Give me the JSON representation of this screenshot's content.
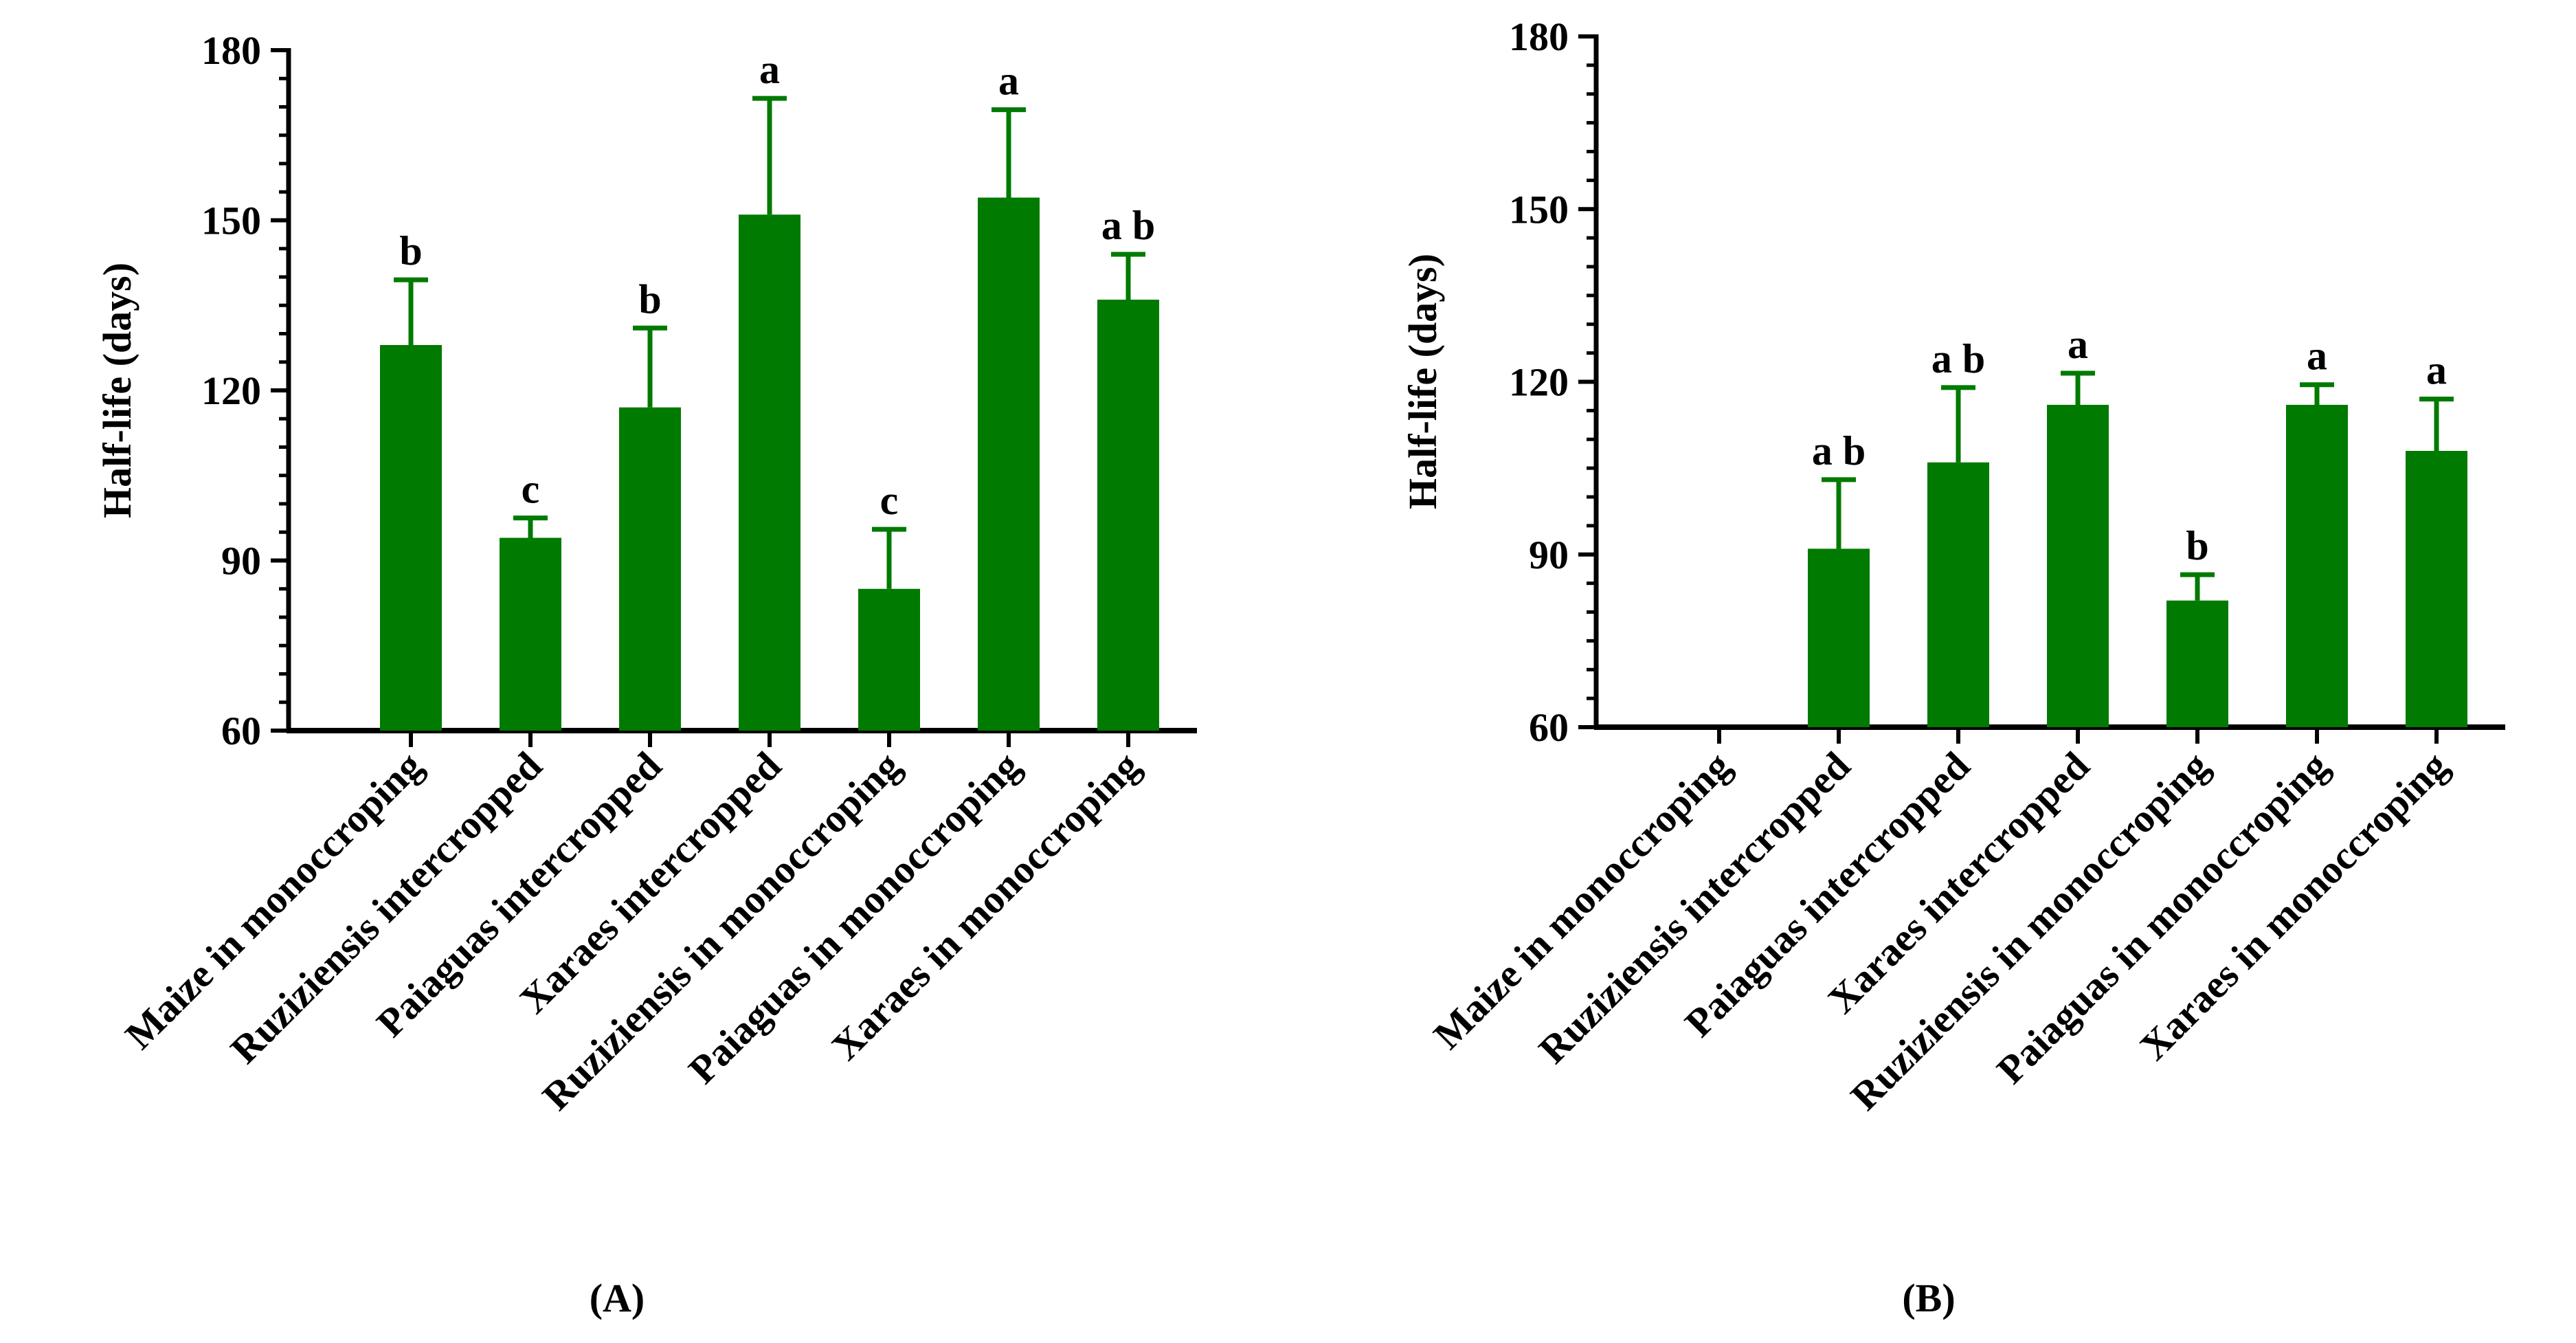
{
  "chart_data": [
    {
      "type": "bar",
      "panel_label": "(A)",
      "title": "",
      "xlabel": "",
      "ylabel": "Half-life (days)",
      "ylim": [
        60,
        180
      ],
      "yticks": [
        60,
        90,
        120,
        150,
        180
      ],
      "grid": false,
      "bar_color": "#007a00",
      "categories": [
        "Maize in monoccroping",
        "Ruziziensis  intercropped",
        "Paiaguas intercropped",
        "Xaraes intercropped",
        "Ruziziensis in monoccroping",
        "Paiaguas in monoccroping",
        "Xaraes in monoccroping"
      ],
      "values": [
        128,
        94,
        117,
        151,
        85,
        154,
        136
      ],
      "errors": [
        11.5,
        3.5,
        14,
        20.5,
        10.5,
        15.5,
        8
      ],
      "letters": [
        "b",
        "c",
        "b",
        "a",
        "c",
        "a",
        "a b"
      ]
    },
    {
      "type": "bar",
      "panel_label": "(B)",
      "title": "",
      "xlabel": "",
      "ylabel": "Half-life (days)",
      "ylim": [
        60,
        180
      ],
      "yticks": [
        60,
        90,
        120,
        150,
        180
      ],
      "grid": false,
      "bar_color": "#007a00",
      "categories": [
        "Maize in monoccroping",
        "Ruziziensis  intercropped",
        "Paiaguas intercropped",
        "Xaraes intercropped",
        "Ruziziensis in monoccroping",
        "Paiaguas in monoccroping",
        "Xaraes in monoccroping"
      ],
      "values": [
        null,
        91,
        106,
        116,
        82,
        116,
        108
      ],
      "errors": [
        null,
        12,
        13,
        5.5,
        4.5,
        3.5,
        9
      ],
      "letters": [
        "",
        "a b",
        "a b",
        "a",
        "b",
        "a",
        "a"
      ]
    }
  ]
}
